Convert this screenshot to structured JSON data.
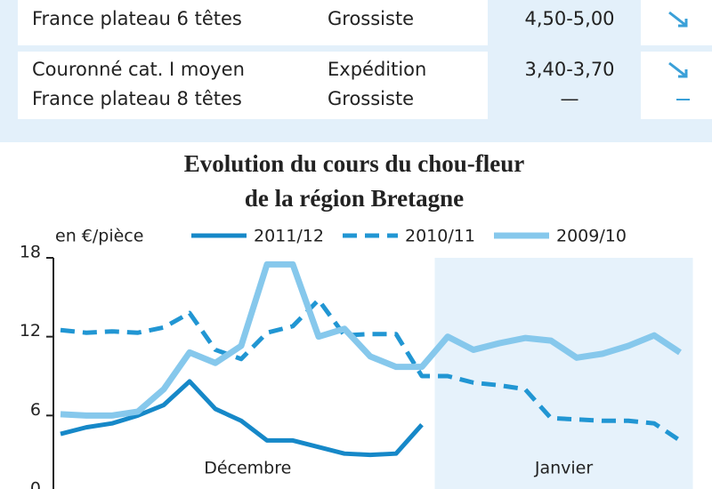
{
  "table": {
    "groups": [
      {
        "rows": [
          [
            "France plateau 6 têtes",
            "Grossiste",
            "4,50-5,00"
          ]
        ]
      },
      {
        "rows": [
          [
            "Couronné cat. I moyen",
            "Expédition",
            "3,40-3,70"
          ],
          [
            "France plateau 8 têtes",
            "Grossiste",
            "—"
          ]
        ]
      }
    ]
  },
  "chart_data": {
    "type": "line",
    "title": [
      "Evolution du cours du chou-fleur",
      "de la région Bretagne"
    ],
    "y_label": "en €/pièce",
    "categories": [
      null,
      null,
      null,
      null,
      null,
      null,
      null,
      null,
      null,
      null,
      null,
      null,
      null,
      null,
      null,
      null,
      null,
      null,
      null,
      null,
      null,
      null,
      null,
      null,
      null
    ],
    "periods": [
      {
        "label": "Décembre",
        "start": 0,
        "end": 14.5,
        "shaded": false
      },
      {
        "label": "Janvier",
        "start": 14.5,
        "end": 24.5,
        "shaded": true
      }
    ],
    "ylim": [
      0,
      18
    ],
    "yticks": [
      0,
      6,
      12,
      18
    ],
    "series": [
      {
        "name": "2011/12",
        "color": "#1688c8",
        "dash": false,
        "values": [
          4.6,
          5.1,
          5.4,
          6,
          6.8,
          8.6,
          6.5,
          5.6,
          4.1,
          4.1,
          3.6,
          3.1,
          3,
          3.1,
          5.3,
          null,
          null,
          null,
          null,
          null,
          null,
          null,
          null,
          null,
          null
        ]
      },
      {
        "name": "2010/11",
        "color": "#2196d3",
        "dash": true,
        "values": [
          12.5,
          12.3,
          12.4,
          12.3,
          12.7,
          13.8,
          11,
          10.3,
          12.3,
          12.8,
          14.8,
          12.1,
          12.2,
          12.2,
          9,
          9,
          8.5,
          8.3,
          8,
          5.8,
          5.7,
          5.6,
          5.6,
          5.4,
          4.1
        ]
      },
      {
        "name": "2009/10",
        "color": "#86c8ec",
        "dash": false,
        "values": [
          6.1,
          6,
          6,
          6.3,
          8,
          10.8,
          10,
          11.3,
          17.5,
          17.5,
          12,
          12.6,
          10.5,
          9.7,
          9.7,
          12,
          11,
          11.5,
          11.9,
          11.7,
          10.4,
          10.7,
          11.3,
          12.1,
          10.8
        ]
      }
    ]
  }
}
